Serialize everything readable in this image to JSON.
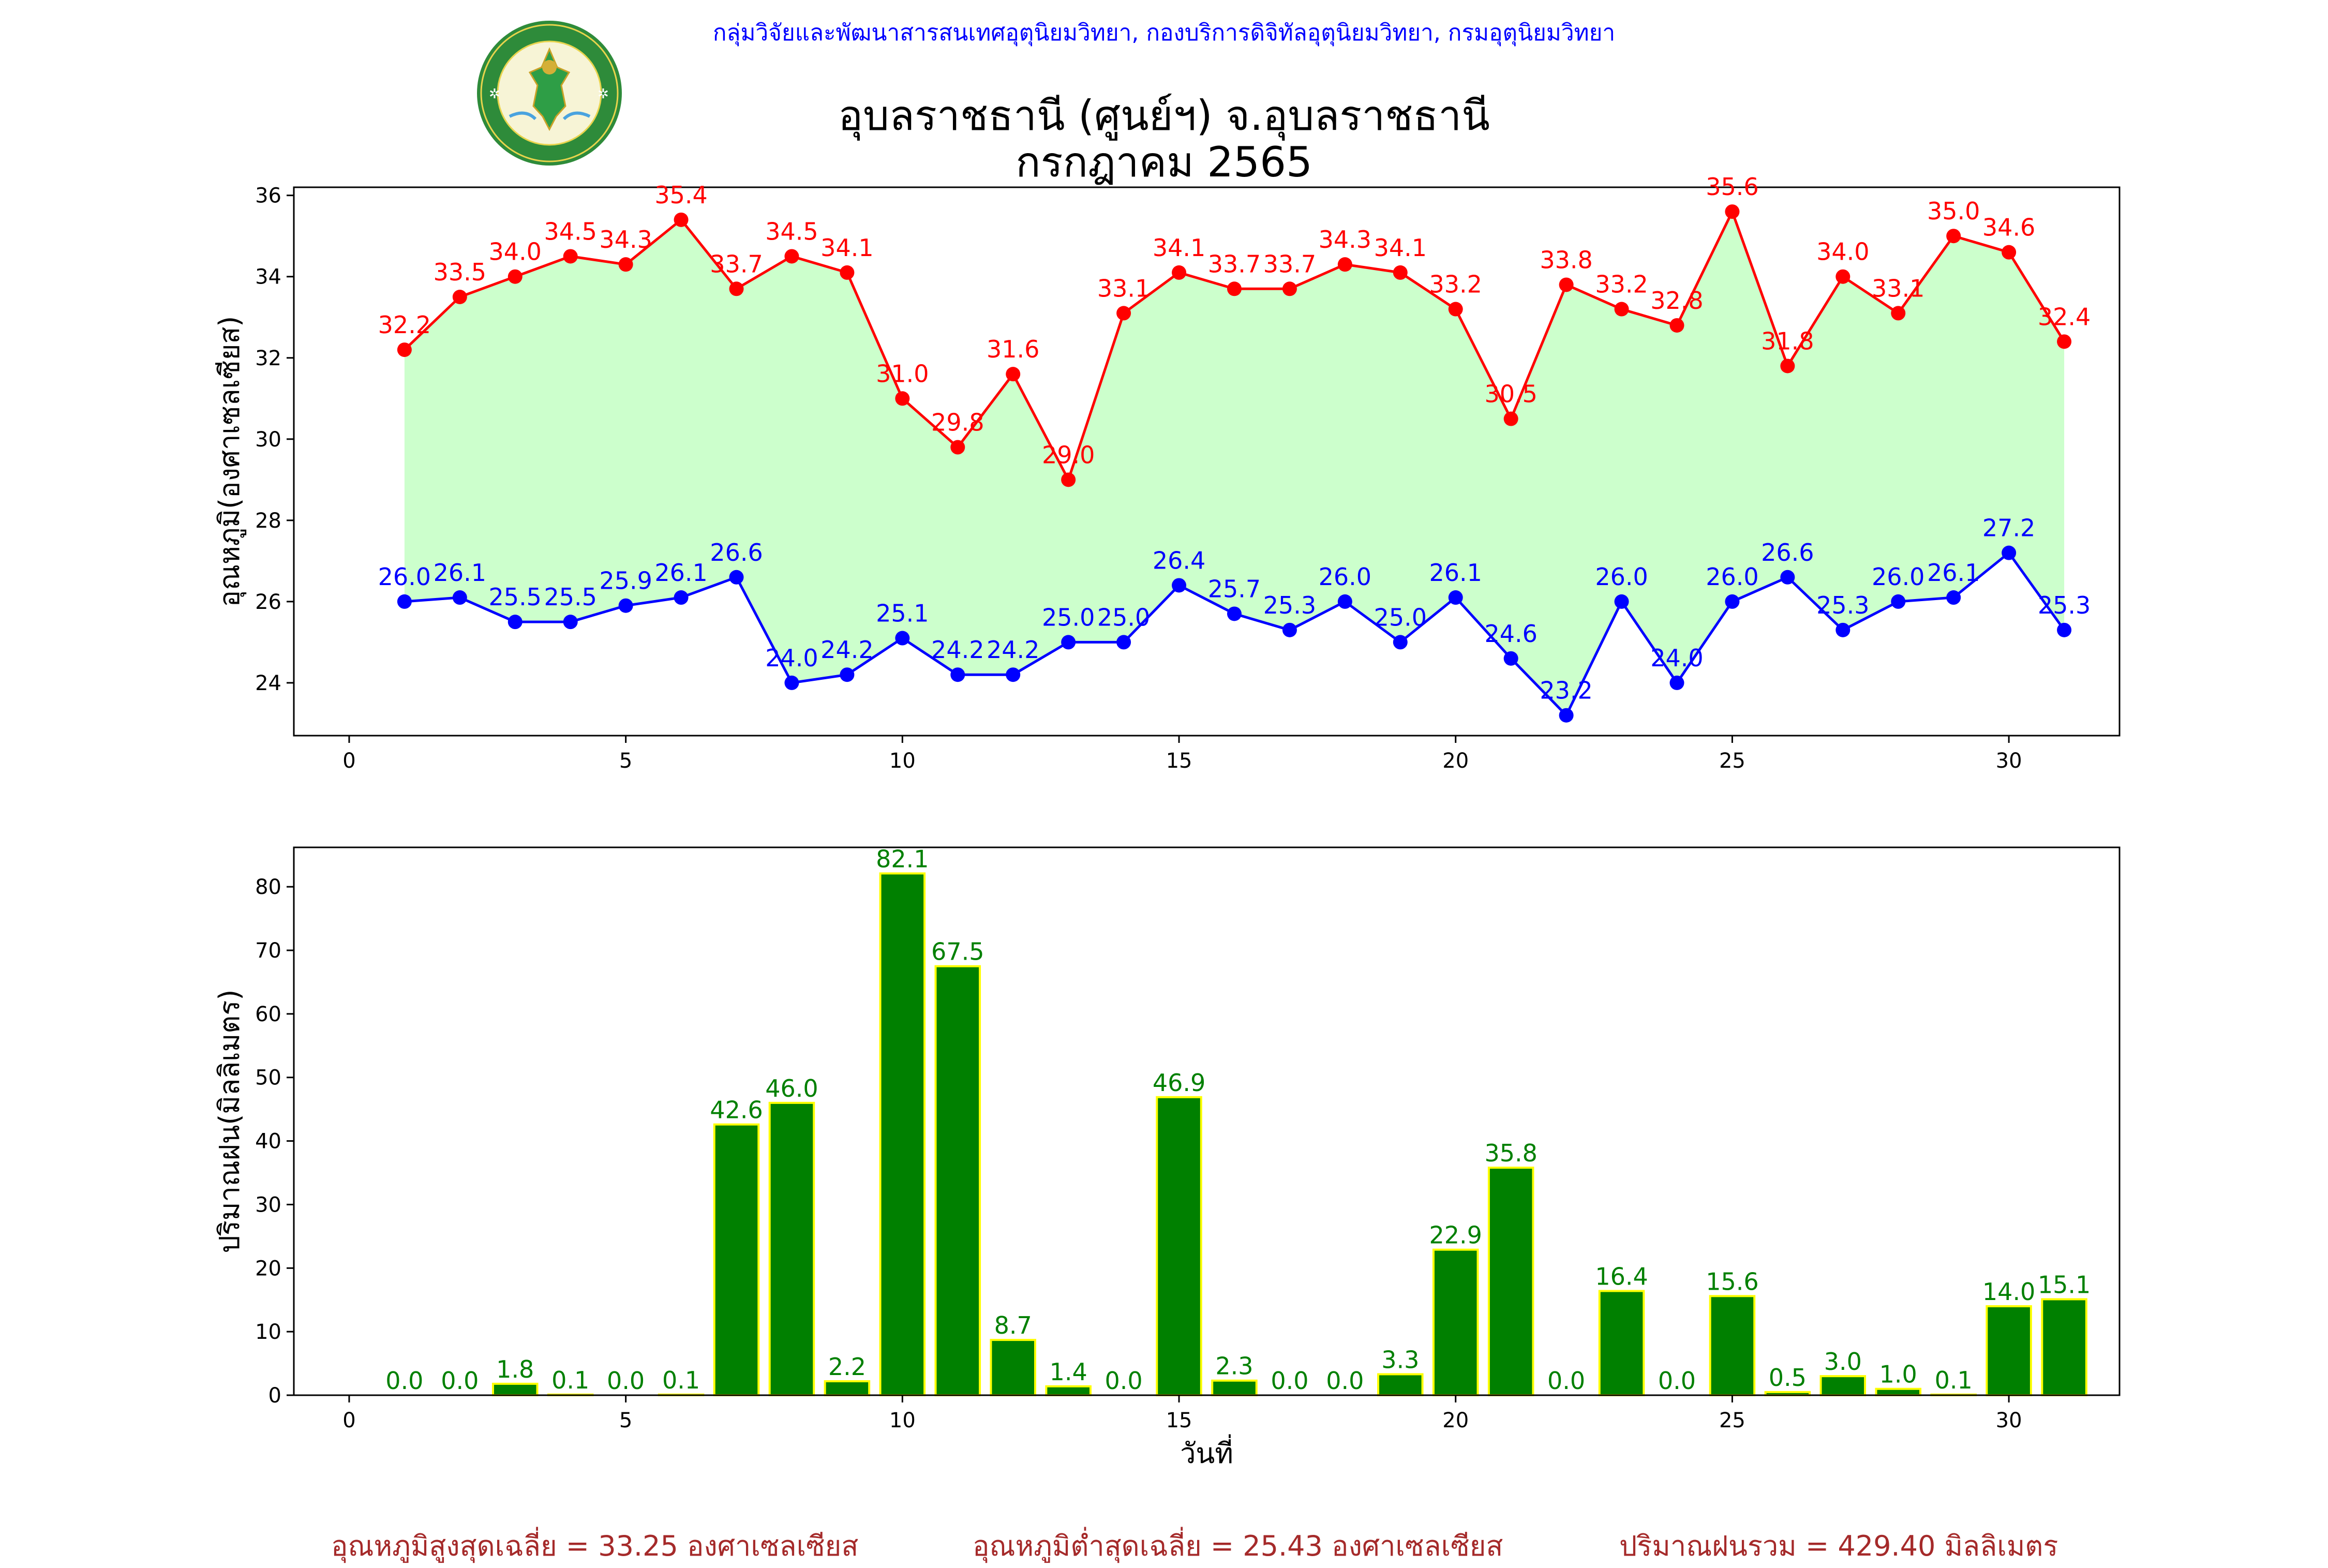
{
  "header": {
    "credit": "กลุ่มวิจัยและพัฒนาสารสนเทศอุตุนิยมวิทยา, กองบริการดิจิทัลอุตุนิยมวิทยา, กรมอุตุนิยมวิทยา",
    "title_line1": "อุบลราชธานี (ศูนย์ฯ) จ.อุบลราชธานี",
    "title_line2": "กรกฎาคม 2565",
    "logo_text_top": "กรมอุตุนิยมวิทยา",
    "logo_text_bottom": "METEOROLOGICAL DEPARTMENT"
  },
  "footer": {
    "avg_max": "อุณหภูมิสูงสุดเฉลี่ย = 33.25 องศาเซลเซียส",
    "avg_min": "อุณหภูมิต่ำสุดเฉลี่ย = 25.43 องศาเซลเซียส",
    "rain_total": "ปริมาณฝนรวม = 429.40 มิลลิเมตร"
  },
  "colors": {
    "max_line": "#ff0000",
    "min_line": "#0000ff",
    "fill": "#ccffcc",
    "bar": "#008000",
    "bar_edge": "#ffff00",
    "footer_text": "#a52a2a",
    "credit_text": "#0000ff"
  },
  "chart_data": [
    {
      "type": "line",
      "ylabel": "อุณหภูมิ(องศาเซลเซียส)",
      "xlabel": "",
      "xlim": [
        -1,
        32
      ],
      "ylim": [
        22.7,
        36.2
      ],
      "xticks": [
        0,
        5,
        10,
        15,
        20,
        25,
        30
      ],
      "yticks": [
        24,
        26,
        28,
        30,
        32,
        34,
        36
      ],
      "fill_between": true,
      "x": [
        1,
        2,
        3,
        4,
        5,
        6,
        7,
        8,
        9,
        10,
        11,
        12,
        13,
        14,
        15,
        16,
        17,
        18,
        19,
        20,
        21,
        22,
        23,
        24,
        25,
        26,
        27,
        28,
        29,
        30,
        31
      ],
      "series": [
        {
          "values": [
            32.2,
            33.5,
            34.0,
            34.5,
            34.3,
            35.4,
            33.7,
            34.5,
            34.1,
            31.0,
            29.8,
            31.6,
            29.0,
            33.1,
            34.1,
            33.7,
            33.7,
            34.3,
            34.1,
            33.2,
            30.5,
            33.8,
            33.2,
            32.8,
            35.6,
            31.8,
            34.0,
            33.1,
            35.0,
            34.6,
            32.4
          ],
          "labels": [
            "32.2",
            "33.5",
            "34.0",
            "34.5",
            "34.3",
            "35.4",
            "33.7",
            "34.5",
            "34.1",
            "31.0",
            "29.8",
            "31.6",
            "29.0",
            "33.1",
            "34.1",
            "33.7",
            "33.7",
            "34.3",
            "34.1",
            "33.2",
            "30.5",
            "33.8",
            "33.2",
            "32.8",
            "35.6",
            "31.8",
            "34.0",
            "33.1",
            "35.0",
            "34.6",
            "32.4"
          ]
        },
        {
          "values": [
            26.0,
            26.1,
            25.5,
            25.5,
            25.9,
            26.1,
            26.6,
            24.0,
            24.2,
            25.1,
            24.2,
            24.2,
            25.0,
            25.0,
            26.4,
            25.7,
            25.3,
            26.0,
            25.0,
            26.1,
            24.6,
            23.2,
            26.0,
            24.0,
            26.0,
            26.6,
            25.3,
            26.0,
            26.1,
            27.2,
            25.3
          ],
          "labels": [
            "26.0",
            "26.1",
            "25.5",
            "25.5",
            "25.9",
            "26.1",
            "26.6",
            "24.0",
            "24.2",
            "25.1",
            "24.2",
            "24.2",
            "25.0",
            "25.0",
            "26.4",
            "25.7",
            "25.3",
            "26.0",
            "25.0",
            "26.1",
            "24.6",
            "23.2",
            "26.0",
            "24.0",
            "26.0",
            "26.6",
            "25.3",
            "26.0",
            "26.1",
            "27.2",
            "25.3"
          ]
        }
      ]
    },
    {
      "type": "bar",
      "ylabel": "ปริมาณฝน(มิลลิเมตร)",
      "xlabel": "วันที่",
      "xlim": [
        -1,
        32
      ],
      "ylim": [
        0,
        86.2
      ],
      "xticks": [
        0,
        5,
        10,
        15,
        20,
        25,
        30
      ],
      "yticks": [
        0,
        10,
        20,
        30,
        40,
        50,
        60,
        70,
        80
      ],
      "x": [
        1,
        2,
        3,
        4,
        5,
        6,
        7,
        8,
        9,
        10,
        11,
        12,
        13,
        14,
        15,
        16,
        17,
        18,
        19,
        20,
        21,
        22,
        23,
        24,
        25,
        26,
        27,
        28,
        29,
        30,
        31
      ],
      "values": [
        0.0,
        0.0,
        1.8,
        0.1,
        0.0,
        0.1,
        42.6,
        46.0,
        2.2,
        82.1,
        67.5,
        8.7,
        1.4,
        0.0,
        46.9,
        2.3,
        0.0,
        0.0,
        3.3,
        22.9,
        35.8,
        0.0,
        16.4,
        0.0,
        15.6,
        0.5,
        3.0,
        1.0,
        0.1,
        14.0,
        15.1
      ],
      "labels": [
        "0.0",
        "0.0",
        "1.8",
        "0.1",
        "0.0",
        "0.1",
        "42.6",
        "46.0",
        "2.2",
        "82.1",
        "67.5",
        "8.7",
        "1.4",
        "0.0",
        "46.9",
        "2.3",
        "0.0",
        "0.0",
        "3.3",
        "22.9",
        "35.8",
        "0.0",
        "16.4",
        "0.0",
        "15.6",
        "0.5",
        "3.0",
        "1.0",
        "0.1",
        "14.0",
        "15.1"
      ]
    }
  ]
}
